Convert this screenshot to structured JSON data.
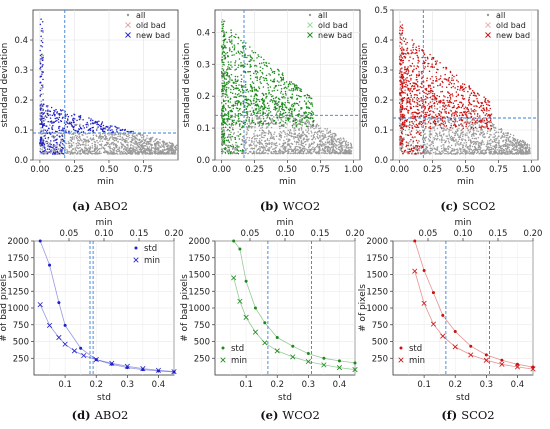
{
  "chart_data": [
    {
      "type": "scatter",
      "caption_letter": "(a)",
      "caption_text": "ABO2",
      "xlabel": "min",
      "ylabel": "standard deviation",
      "xlim": [
        -0.05,
        1.0
      ],
      "ylim": [
        0.0,
        0.5
      ],
      "x_ticks": [
        "0.00",
        "0.25",
        "0.50",
        "0.75"
      ],
      "y_ticks": [
        "0.0",
        "0.1",
        "0.2",
        "0.3",
        "0.4"
      ],
      "threshold_x": 0.18,
      "threshold_y": 0.09,
      "colors": {
        "all": "#9a9a9a",
        "old_bad": "#e0a0a0",
        "new_bad": "#1f1fc8"
      },
      "legend": [
        "all",
        "old bad",
        "new bad"
      ],
      "legend_loc": "upper-right",
      "grid": true
    },
    {
      "type": "scatter",
      "caption_letter": "(b)",
      "caption_text": "WCO2",
      "xlabel": "min",
      "ylabel": "standard deviation",
      "xlim": [
        -0.05,
        1.05
      ],
      "ylim": [
        0.0,
        0.47
      ],
      "x_ticks": [
        "0.00",
        "0.25",
        "0.50",
        "0.75",
        "1.00"
      ],
      "y_ticks": [
        "0.0",
        "0.1",
        "0.2",
        "0.3",
        "0.4"
      ],
      "threshold_x": 0.17,
      "threshold_y": 0.14,
      "colors": {
        "all": "#9a9a9a",
        "old_bad": "#9ad69a",
        "new_bad": "#1a8a1a"
      },
      "legend": [
        "all",
        "old bad",
        "new bad"
      ],
      "legend_loc": "upper-right",
      "grid": true
    },
    {
      "type": "scatter",
      "caption_letter": "(c)",
      "caption_text": "SCO2",
      "xlabel": "min",
      "ylabel": "standard deviation",
      "xlim": [
        -0.05,
        1.05
      ],
      "ylim": [
        0.0,
        0.5
      ],
      "x_ticks": [
        "0.00",
        "0.25",
        "0.50",
        "0.75",
        "1.00"
      ],
      "y_ticks": [
        "0.0",
        "0.1",
        "0.2",
        "0.3",
        "0.4",
        "0.5"
      ],
      "threshold_x": 0.18,
      "threshold_y": 0.14,
      "colors": {
        "all": "#9a9a9a",
        "old_bad": "#e8b0b0",
        "new_bad": "#cc1010"
      },
      "legend": [
        "all",
        "old bad",
        "new bad"
      ],
      "legend_loc": "upper-right",
      "grid": true
    },
    {
      "type": "line",
      "caption_letter": "(d)",
      "caption_text": "ABO2",
      "xlabel": "std",
      "x2label": "min",
      "ylabel": "# of bad pixels",
      "xlim": [
        0.0,
        0.45
      ],
      "x2lim": [
        0.0,
        0.2
      ],
      "ylim": [
        0,
        2000
      ],
      "x_ticks": [
        "0.1",
        "0.2",
        "0.3",
        "0.4"
      ],
      "x2_ticks": [
        "0.05",
        "0.10",
        "0.15",
        "0.20"
      ],
      "y_ticks": [
        "250",
        "500",
        "750",
        "1000",
        "1250",
        "1500",
        "1750",
        "2000"
      ],
      "color": "#1f1fc8",
      "vlines_std": [
        0.18,
        0.19
      ],
      "series": [
        {
          "name": "std",
          "marker": "dot",
          "x": [
            0.02,
            0.05,
            0.08,
            0.1,
            0.15,
            0.2,
            0.25,
            0.3,
            0.35,
            0.4,
            0.45
          ],
          "values": [
            2000,
            1640,
            1080,
            740,
            400,
            230,
            160,
            110,
            80,
            60,
            45
          ]
        },
        {
          "name": "min",
          "marker": "cross",
          "x": [
            0.02,
            0.05,
            0.08,
            0.1,
            0.13,
            0.16,
            0.2,
            0.25,
            0.3,
            0.35,
            0.4,
            0.45
          ],
          "values": [
            1050,
            740,
            560,
            460,
            360,
            290,
            230,
            175,
            130,
            95,
            70,
            50
          ]
        }
      ],
      "legend_loc": "upper-right",
      "grid": true
    },
    {
      "type": "line",
      "caption_letter": "(e)",
      "caption_text": "WCO2",
      "xlabel": "std",
      "x2label": "min",
      "ylabel": "# of bad pixels",
      "xlim": [
        0.0,
        0.45
      ],
      "x2lim": [
        0.0,
        0.2
      ],
      "ylim": [
        0,
        2000
      ],
      "x_ticks": [
        "0.1",
        "0.2",
        "0.3",
        "0.4"
      ],
      "x2_ticks": [
        "0.05",
        "0.10",
        "0.15",
        "0.20"
      ],
      "y_ticks": [
        "250",
        "500",
        "750",
        "1000",
        "1250",
        "1500",
        "1750",
        "2000"
      ],
      "color": "#1a8a1a",
      "vlines_std": [
        0.17,
        0.31
      ],
      "series": [
        {
          "name": "std",
          "marker": "dot",
          "x": [
            0.06,
            0.08,
            0.1,
            0.13,
            0.16,
            0.2,
            0.25,
            0.3,
            0.35,
            0.4,
            0.45
          ],
          "values": [
            2000,
            1880,
            1400,
            1000,
            780,
            560,
            430,
            320,
            250,
            210,
            180
          ]
        },
        {
          "name": "min",
          "marker": "cross",
          "x": [
            0.06,
            0.08,
            0.1,
            0.13,
            0.16,
            0.2,
            0.25,
            0.3,
            0.35,
            0.4,
            0.45
          ],
          "values": [
            1450,
            1100,
            860,
            640,
            480,
            360,
            270,
            200,
            150,
            110,
            80
          ]
        }
      ],
      "legend_loc": "lower-left",
      "grid": true
    },
    {
      "type": "line",
      "caption_letter": "(f)",
      "caption_text": "SCO2",
      "xlabel": "std",
      "x2label": "min",
      "ylabel": "# of pixels",
      "xlim": [
        0.0,
        0.45
      ],
      "x2lim": [
        0.0,
        0.2
      ],
      "ylim": [
        0,
        2000
      ],
      "x_ticks": [
        "0.1",
        "0.2",
        "0.3",
        "0.4"
      ],
      "x2_ticks": [
        "0.05",
        "0.10",
        "0.15",
        "0.20"
      ],
      "y_ticks": [
        "250",
        "500",
        "750",
        "1000",
        "1250",
        "1500",
        "1750",
        "2000"
      ],
      "color": "#cc1010",
      "vlines_std": [
        0.17,
        0.31
      ],
      "series": [
        {
          "name": "std",
          "marker": "dot",
          "x": [
            0.07,
            0.1,
            0.13,
            0.16,
            0.2,
            0.25,
            0.3,
            0.35,
            0.4,
            0.45
          ],
          "values": [
            2000,
            1560,
            1230,
            890,
            650,
            430,
            300,
            220,
            160,
            120
          ]
        },
        {
          "name": "min",
          "marker": "cross",
          "x": [
            0.07,
            0.1,
            0.13,
            0.16,
            0.2,
            0.25,
            0.3,
            0.35,
            0.4,
            0.45
          ],
          "values": [
            1550,
            1070,
            760,
            580,
            420,
            300,
            220,
            160,
            120,
            90
          ]
        }
      ],
      "legend_loc": "lower-left",
      "grid": true
    }
  ]
}
